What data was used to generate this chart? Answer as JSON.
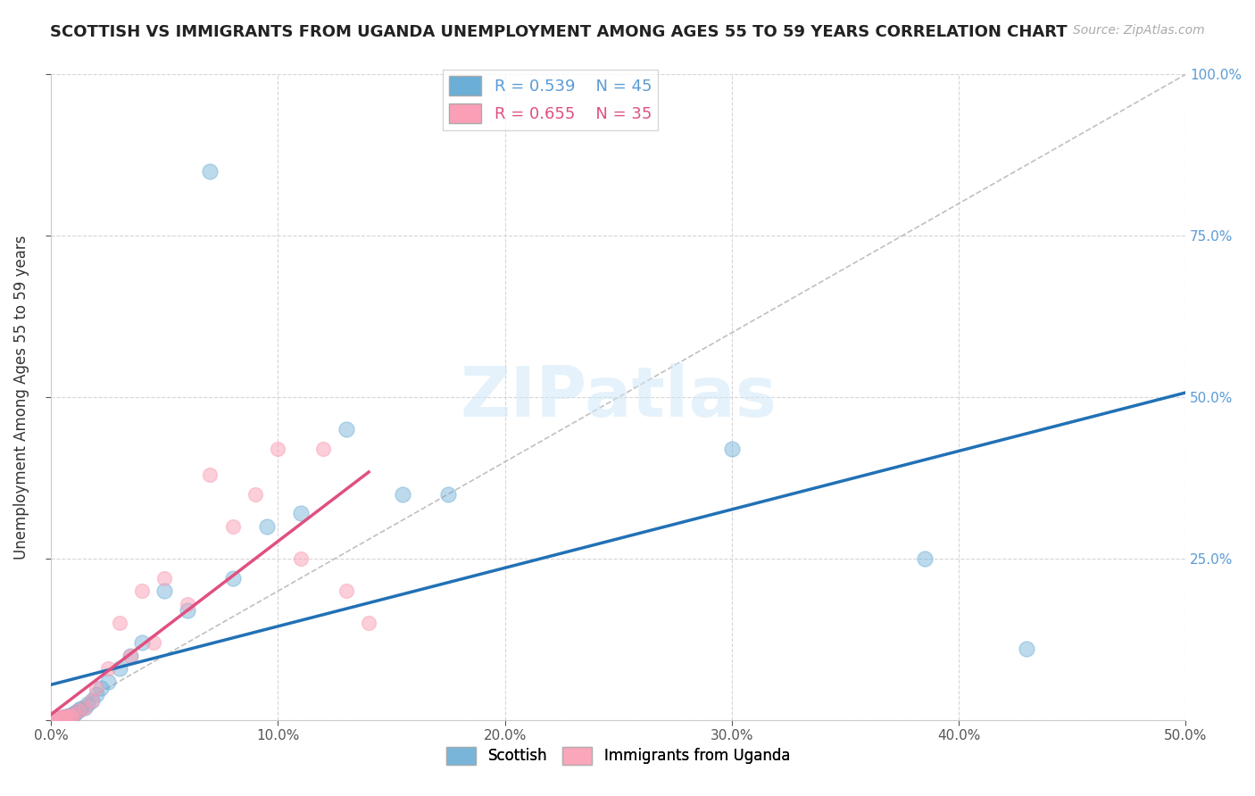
{
  "title": "SCOTTISH VS IMMIGRANTS FROM UGANDA UNEMPLOYMENT AMONG AGES 55 TO 59 YEARS CORRELATION CHART",
  "source": "Source: ZipAtlas.com",
  "ylabel": "Unemployment Among Ages 55 to 59 years",
  "xlim": [
    0,
    0.5
  ],
  "ylim": [
    0,
    1.0
  ],
  "x_tick_positions": [
    0.0,
    0.1,
    0.2,
    0.3,
    0.4,
    0.5
  ],
  "x_tick_labels": [
    "0.0%",
    "10.0%",
    "20.0%",
    "30.0%",
    "40.0%",
    "50.0%"
  ],
  "y_tick_positions": [
    0.0,
    0.25,
    0.5,
    0.75,
    1.0
  ],
  "y_tick_labels": [
    "",
    "25.0%",
    "50.0%",
    "75.0%",
    "100.0%"
  ],
  "legend_blue_r": "R = 0.539",
  "legend_blue_n": "N = 45",
  "legend_pink_r": "R = 0.655",
  "legend_pink_n": "N = 35",
  "watermark": "ZIPatlas",
  "blue_color": "#6baed6",
  "pink_color": "#fa9fb5",
  "blue_line_color": "#2171b5",
  "pink_line_color": "#e05080",
  "background_color": "#ffffff",
  "grid_color": "#cccccc",
  "scottish_x": [
    0.0,
    0.001,
    0.001,
    0.002,
    0.002,
    0.003,
    0.003,
    0.004,
    0.004,
    0.005,
    0.005,
    0.006,
    0.006,
    0.007,
    0.007,
    0.008,
    0.008,
    0.009,
    0.009,
    0.01,
    0.01,
    0.011,
    0.012,
    0.013,
    0.015,
    0.016,
    0.018,
    0.02,
    0.022,
    0.025,
    0.03,
    0.035,
    0.04,
    0.05,
    0.06,
    0.07,
    0.08,
    0.095,
    0.11,
    0.13,
    0.155,
    0.175,
    0.3,
    0.385,
    0.43
  ],
  "scottish_y": [
    0.0,
    0.001,
    0.002,
    0.001,
    0.003,
    0.002,
    0.001,
    0.003,
    0.002,
    0.004,
    0.003,
    0.005,
    0.004,
    0.006,
    0.005,
    0.007,
    0.006,
    0.008,
    0.007,
    0.01,
    0.009,
    0.012,
    0.015,
    0.018,
    0.02,
    0.025,
    0.03,
    0.04,
    0.05,
    0.06,
    0.08,
    0.1,
    0.12,
    0.2,
    0.17,
    0.85,
    0.22,
    0.3,
    0.32,
    0.45,
    0.35,
    0.35,
    0.42,
    0.25,
    0.11
  ],
  "uganda_x": [
    0.0,
    0.001,
    0.001,
    0.002,
    0.002,
    0.003,
    0.003,
    0.004,
    0.004,
    0.005,
    0.005,
    0.006,
    0.007,
    0.008,
    0.009,
    0.01,
    0.012,
    0.015,
    0.018,
    0.02,
    0.025,
    0.03,
    0.035,
    0.04,
    0.045,
    0.05,
    0.06,
    0.07,
    0.08,
    0.09,
    0.1,
    0.11,
    0.12,
    0.13,
    0.14
  ],
  "uganda_y": [
    0.0,
    0.001,
    0.002,
    0.001,
    0.003,
    0.002,
    0.001,
    0.004,
    0.002,
    0.005,
    0.003,
    0.006,
    0.005,
    0.007,
    0.006,
    0.01,
    0.015,
    0.02,
    0.03,
    0.05,
    0.08,
    0.15,
    0.1,
    0.2,
    0.12,
    0.22,
    0.18,
    0.38,
    0.3,
    0.35,
    0.42,
    0.25,
    0.42,
    0.2,
    0.15
  ]
}
